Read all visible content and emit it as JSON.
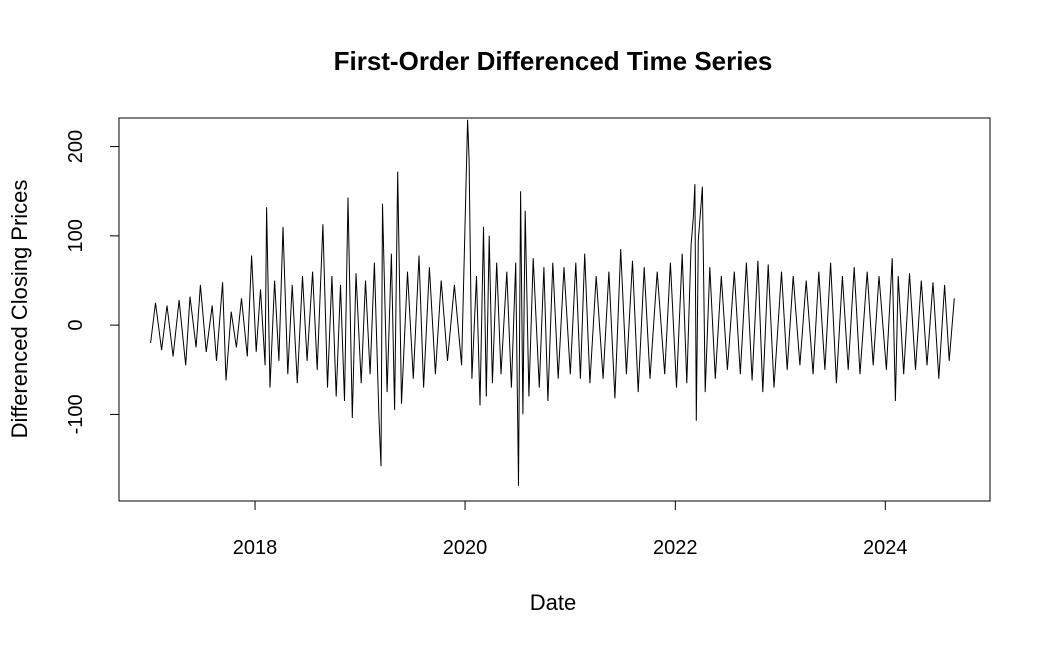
{
  "chart_data": {
    "type": "line",
    "title": "First-Order Differenced Time Series",
    "xlabel": "Date",
    "ylabel": "Differenced Closing Prices",
    "xlim": [
      "2016-09-15",
      "2024-12-30"
    ],
    "ylim": [
      -197,
      232
    ],
    "x_ticks": [
      "2018",
      "2020",
      "2022",
      "2024"
    ],
    "y_ticks": [
      -100,
      0,
      100,
      200
    ],
    "y_tick_labels": [
      "-100",
      "0",
      "100",
      "200"
    ],
    "grid": false,
    "legend": "none",
    "line_color": "#000000",
    "series": [
      {
        "values": [
          [
            "2017-01-03",
            -20
          ],
          [
            "2017-01-20",
            25
          ],
          [
            "2017-02-10",
            -28
          ],
          [
            "2017-03-01",
            22
          ],
          [
            "2017-03-22",
            -35
          ],
          [
            "2017-04-12",
            28
          ],
          [
            "2017-05-05",
            -45
          ],
          [
            "2017-05-20",
            32
          ],
          [
            "2017-06-10",
            -25
          ],
          [
            "2017-06-25",
            45
          ],
          [
            "2017-07-15",
            -30
          ],
          [
            "2017-08-05",
            22
          ],
          [
            "2017-08-20",
            -40
          ],
          [
            "2017-09-10",
            48
          ],
          [
            "2017-09-22",
            -62
          ],
          [
            "2017-10-10",
            15
          ],
          [
            "2017-10-28",
            -25
          ],
          [
            "2017-11-15",
            30
          ],
          [
            "2017-12-05",
            -35
          ],
          [
            "2017-12-20",
            78
          ],
          [
            "2018-01-05",
            -30
          ],
          [
            "2018-01-20",
            40
          ],
          [
            "2018-02-05",
            -45
          ],
          [
            "2018-02-10",
            132
          ],
          [
            "2018-02-22",
            -70
          ],
          [
            "2018-03-10",
            50
          ],
          [
            "2018-03-25",
            -40
          ],
          [
            "2018-04-08",
            110
          ],
          [
            "2018-04-25",
            -55
          ],
          [
            "2018-05-10",
            45
          ],
          [
            "2018-05-28",
            -65
          ],
          [
            "2018-06-15",
            55
          ],
          [
            "2018-07-01",
            -40
          ],
          [
            "2018-07-20",
            60
          ],
          [
            "2018-08-05",
            -50
          ],
          [
            "2018-08-25",
            113
          ],
          [
            "2018-09-10",
            -70
          ],
          [
            "2018-09-25",
            55
          ],
          [
            "2018-10-10",
            -80
          ],
          [
            "2018-10-25",
            45
          ],
          [
            "2018-11-08",
            -85
          ],
          [
            "2018-11-20",
            143
          ],
          [
            "2018-12-05",
            -104
          ],
          [
            "2018-12-18",
            58
          ],
          [
            "2019-01-05",
            -65
          ],
          [
            "2019-01-20",
            50
          ],
          [
            "2019-02-05",
            -55
          ],
          [
            "2019-02-20",
            70
          ],
          [
            "2019-03-08",
            -105
          ],
          [
            "2019-03-15",
            -158
          ],
          [
            "2019-03-20",
            136
          ],
          [
            "2019-04-05",
            -75
          ],
          [
            "2019-04-20",
            80
          ],
          [
            "2019-05-01",
            -95
          ],
          [
            "2019-05-12",
            172
          ],
          [
            "2019-05-25",
            -88
          ],
          [
            "2019-06-15",
            60
          ],
          [
            "2019-07-05",
            -60
          ],
          [
            "2019-07-25",
            78
          ],
          [
            "2019-08-10",
            -70
          ],
          [
            "2019-08-30",
            65
          ],
          [
            "2019-09-20",
            -55
          ],
          [
            "2019-10-10",
            50
          ],
          [
            "2019-11-01",
            -40
          ],
          [
            "2019-11-25",
            45
          ],
          [
            "2019-12-20",
            -45
          ],
          [
            "2020-01-10",
            230
          ],
          [
            "2020-01-15",
            185
          ],
          [
            "2020-01-25",
            -60
          ],
          [
            "2020-02-10",
            55
          ],
          [
            "2020-02-22",
            -90
          ],
          [
            "2020-03-05",
            110
          ],
          [
            "2020-03-15",
            -80
          ],
          [
            "2020-03-25",
            100
          ],
          [
            "2020-04-05",
            -65
          ],
          [
            "2020-04-20",
            70
          ],
          [
            "2020-05-05",
            -55
          ],
          [
            "2020-05-25",
            60
          ],
          [
            "2020-06-10",
            -70
          ],
          [
            "2020-06-25",
            70
          ],
          [
            "2020-07-05",
            -180
          ],
          [
            "2020-07-12",
            150
          ],
          [
            "2020-07-20",
            -100
          ],
          [
            "2020-07-28",
            128
          ],
          [
            "2020-08-10",
            -80
          ],
          [
            "2020-08-25",
            75
          ],
          [
            "2020-09-15",
            -70
          ],
          [
            "2020-10-01",
            65
          ],
          [
            "2020-10-15",
            -85
          ],
          [
            "2020-11-01",
            70
          ],
          [
            "2020-11-20",
            -60
          ],
          [
            "2020-12-10",
            65
          ],
          [
            "2021-01-01",
            -55
          ],
          [
            "2021-01-20",
            70
          ],
          [
            "2021-02-05",
            -60
          ],
          [
            "2021-02-20",
            80
          ],
          [
            "2021-03-10",
            -65
          ],
          [
            "2021-04-01",
            55
          ],
          [
            "2021-04-25",
            -60
          ],
          [
            "2021-05-15",
            60
          ],
          [
            "2021-06-05",
            -82
          ],
          [
            "2021-06-25",
            85
          ],
          [
            "2021-07-15",
            -55
          ],
          [
            "2021-08-05",
            72
          ],
          [
            "2021-08-25",
            -75
          ],
          [
            "2021-09-15",
            65
          ],
          [
            "2021-10-05",
            -60
          ],
          [
            "2021-10-30",
            60
          ],
          [
            "2021-11-25",
            -55
          ],
          [
            "2021-12-15",
            70
          ],
          [
            "2022-01-05",
            -70
          ],
          [
            "2022-01-25",
            80
          ],
          [
            "2022-02-10",
            -65
          ],
          [
            "2022-02-25",
            90
          ],
          [
            "2022-03-05",
            122
          ],
          [
            "2022-03-10",
            158
          ],
          [
            "2022-03-15",
            -107
          ],
          [
            "2022-03-22",
            95
          ],
          [
            "2022-04-05",
            155
          ],
          [
            "2022-04-15",
            -75
          ],
          [
            "2022-05-01",
            65
          ],
          [
            "2022-05-20",
            -60
          ],
          [
            "2022-06-10",
            55
          ],
          [
            "2022-07-01",
            -50
          ],
          [
            "2022-07-25",
            60
          ],
          [
            "2022-08-15",
            -55
          ],
          [
            "2022-09-05",
            70
          ],
          [
            "2022-09-25",
            -62
          ],
          [
            "2022-10-15",
            72
          ],
          [
            "2022-11-01",
            -75
          ],
          [
            "2022-11-20",
            68
          ],
          [
            "2022-12-10",
            -70
          ],
          [
            "2023-01-05",
            60
          ],
          [
            "2023-01-25",
            -50
          ],
          [
            "2023-02-15",
            55
          ],
          [
            "2023-03-10",
            -45
          ],
          [
            "2023-04-01",
            50
          ],
          [
            "2023-04-25",
            -55
          ],
          [
            "2023-05-15",
            60
          ],
          [
            "2023-06-05",
            -50
          ],
          [
            "2023-06-25",
            70
          ],
          [
            "2023-07-15",
            -65
          ],
          [
            "2023-08-05",
            55
          ],
          [
            "2023-08-25",
            -50
          ],
          [
            "2023-09-15",
            65
          ],
          [
            "2023-10-05",
            -55
          ],
          [
            "2023-10-30",
            60
          ],
          [
            "2023-11-20",
            -45
          ],
          [
            "2023-12-10",
            55
          ],
          [
            "2024-01-05",
            -50
          ],
          [
            "2024-01-25",
            75
          ],
          [
            "2024-02-05",
            -85
          ],
          [
            "2024-02-15",
            55
          ],
          [
            "2024-03-05",
            -55
          ],
          [
            "2024-03-25",
            58
          ],
          [
            "2024-04-15",
            -50
          ],
          [
            "2024-05-05",
            50
          ],
          [
            "2024-05-25",
            -45
          ],
          [
            "2024-06-15",
            48
          ],
          [
            "2024-07-05",
            -60
          ],
          [
            "2024-07-25",
            45
          ],
          [
            "2024-08-10",
            -40
          ],
          [
            "2024-08-28",
            30
          ]
        ]
      }
    ]
  }
}
